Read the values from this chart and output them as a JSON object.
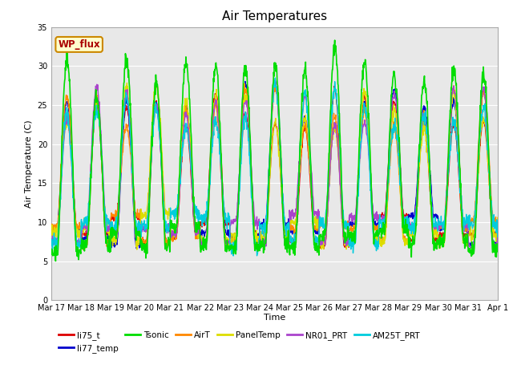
{
  "title": "Air Temperatures",
  "xlabel": "Time",
  "ylabel": "Air Temperature (C)",
  "ylim": [
    0,
    35
  ],
  "yticks": [
    0,
    5,
    10,
    15,
    20,
    25,
    30,
    35
  ],
  "fig_bg": "#ffffff",
  "plot_bg": "#e8e8e8",
  "series": {
    "li75_t": {
      "color": "#dd0000",
      "lw": 1.0,
      "zorder": 3
    },
    "li77_temp": {
      "color": "#0000cc",
      "lw": 1.0,
      "zorder": 3
    },
    "Tsonic": {
      "color": "#00dd00",
      "lw": 1.2,
      "zorder": 4
    },
    "AirT": {
      "color": "#ff8800",
      "lw": 1.0,
      "zorder": 3
    },
    "PanelTemp": {
      "color": "#dddd00",
      "lw": 1.0,
      "zorder": 3
    },
    "NR01_PRT": {
      "color": "#aa44cc",
      "lw": 1.0,
      "zorder": 3
    },
    "AM25T_PRT": {
      "color": "#00ccdd",
      "lw": 1.0,
      "zorder": 3
    }
  },
  "wp_flux_label": "WP_flux",
  "wp_flux_bg": "#ffffcc",
  "wp_flux_border": "#cc8800",
  "wp_flux_text_color": "#aa0000",
  "n_days": 15,
  "start_day": 17,
  "tick_labels": [
    "Mar 17",
    "Mar 18",
    "Mar 19",
    "Mar 20",
    "Mar 21",
    "Mar 22",
    "Mar 23",
    "Mar 24",
    "Mar 25",
    "Mar 26",
    "Mar 27",
    "Mar 28",
    "Mar 29",
    "Mar 30",
    "Mar 31",
    "Apr 1"
  ]
}
